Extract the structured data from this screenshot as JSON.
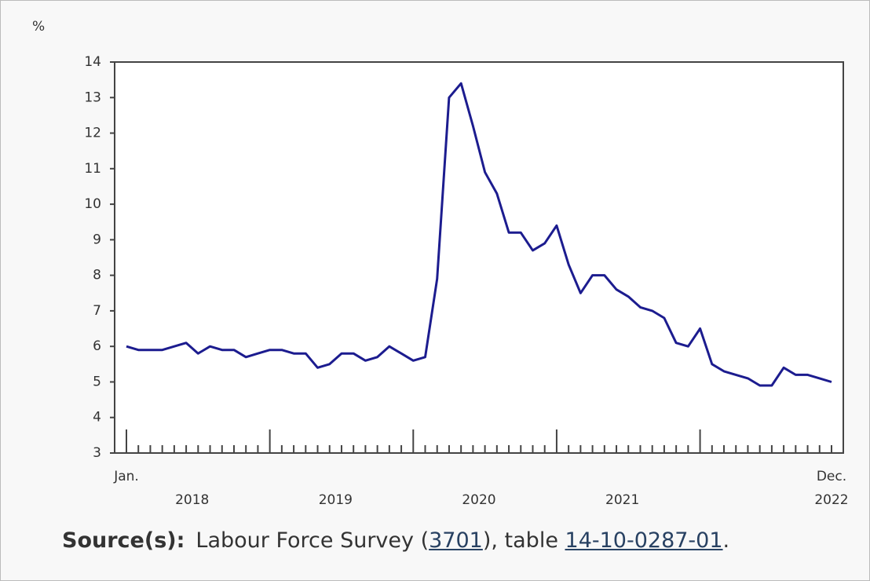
{
  "chart_data": {
    "type": "line",
    "y_label": "%",
    "categories": [
      "Jan.",
      null,
      null,
      null,
      null,
      null,
      null,
      null,
      null,
      null,
      null,
      null,
      null,
      null,
      null,
      null,
      null,
      null,
      null,
      null,
      null,
      null,
      null,
      null,
      null,
      null,
      null,
      null,
      null,
      null,
      null,
      null,
      null,
      null,
      null,
      null,
      null,
      null,
      null,
      null,
      null,
      null,
      null,
      null,
      null,
      null,
      null,
      null,
      null,
      null,
      null,
      null,
      null,
      null,
      null,
      null,
      null,
      null,
      null,
      "Dec."
    ],
    "years": [
      "2018",
      "2019",
      "2020",
      "2021",
      "2022"
    ],
    "values": [
      6.0,
      5.9,
      5.9,
      5.9,
      6.0,
      6.1,
      5.8,
      6.0,
      5.9,
      5.9,
      5.7,
      5.8,
      5.9,
      5.9,
      5.8,
      5.8,
      5.4,
      5.5,
      5.8,
      5.8,
      5.6,
      5.7,
      6.0,
      5.8,
      5.6,
      5.7,
      7.9,
      13.0,
      13.4,
      12.2,
      10.9,
      10.3,
      9.2,
      9.2,
      8.7,
      8.9,
      9.4,
      8.3,
      7.5,
      8.0,
      8.0,
      7.6,
      7.4,
      7.1,
      7.0,
      6.8,
      6.1,
      6.0,
      6.5,
      5.5,
      5.3,
      5.2,
      5.1,
      4.9,
      4.9,
      5.4,
      5.2,
      5.2,
      5.1,
      5.0
    ],
    "color": "#1c1c8f",
    "ylim": [
      3,
      14
    ],
    "yticks": [
      3,
      4,
      5,
      6,
      7,
      8,
      9,
      10,
      11,
      12,
      13,
      14
    ]
  },
  "source": {
    "label": "Source(s):",
    "text_before": "Labour Force Survey (",
    "link1": "3701",
    "text_mid": "), table ",
    "link2": "14-10-0287-01",
    "text_after": "."
  }
}
